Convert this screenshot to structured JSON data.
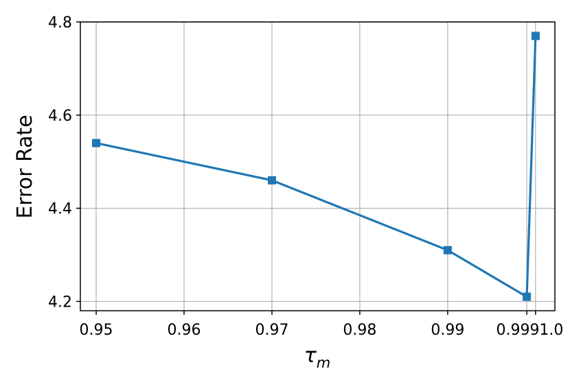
{
  "chart_data": {
    "type": "line",
    "xlabel": "τ",
    "xlabel_sub": "m",
    "ylabel": "Error Rate",
    "x_categories": [
      "0.95",
      "0.96",
      "0.97",
      "0.98",
      "0.99",
      "0.999",
      "1.0"
    ],
    "x_ticks": [
      0.95,
      0.96,
      0.97,
      0.98,
      0.99
    ],
    "x_tick_labels": [
      "0.95",
      "0.96",
      "0.97",
      "0.98",
      "0.99"
    ],
    "x_tick_label_tail": "0.9991.0",
    "y_ticks": [
      4.2,
      4.4,
      4.6,
      4.8
    ],
    "y_tick_labels": [
      "4.2",
      "4.4",
      "4.6",
      "4.8"
    ],
    "xlim": [
      0.9482,
      1.0022
    ],
    "ylim": [
      4.18,
      4.8
    ],
    "grid": true,
    "series": [
      {
        "color": "#1f77b4",
        "marker": "square",
        "x": [
          0.95,
          0.97,
          0.99,
          0.999,
          1.0
        ],
        "y": [
          4.54,
          4.46,
          4.31,
          4.21,
          4.77
        ]
      }
    ]
  }
}
